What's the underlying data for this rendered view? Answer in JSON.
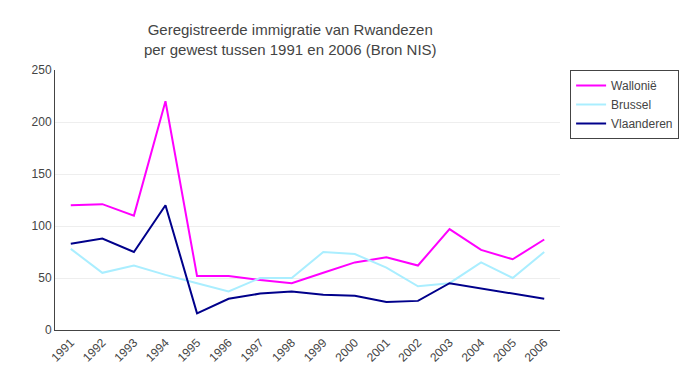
{
  "chart_data": {
    "type": "line",
    "title": "Geregistreerde immigratie van Rwandezen\nper gewest tussen 1991 en 2006 (Bron NIS)",
    "x": [
      1991,
      1992,
      1993,
      1994,
      1995,
      1996,
      1997,
      1998,
      1999,
      2000,
      2001,
      2002,
      2003,
      2004,
      2005,
      2006
    ],
    "series": [
      {
        "name": "Wallonië",
        "color": "#ff00ff",
        "values": [
          120,
          121,
          110,
          220,
          52,
          52,
          48,
          45,
          55,
          65,
          70,
          62,
          97,
          77,
          68,
          87
        ]
      },
      {
        "name": "Brussel",
        "color": "#aaeeff",
        "values": [
          78,
          55,
          62,
          53,
          45,
          37,
          50,
          50,
          75,
          73,
          60,
          42,
          45,
          65,
          50,
          75
        ]
      },
      {
        "name": "Vlaanderen",
        "color": "#00008b",
        "values": [
          83,
          88,
          75,
          120,
          16,
          30,
          35,
          37,
          34,
          33,
          27,
          28,
          45,
          40,
          35,
          30
        ]
      }
    ],
    "xlim": [
      1990.5,
      2006.5
    ],
    "xticks": [
      1991,
      1992,
      1993,
      1994,
      1995,
      1996,
      1997,
      1998,
      1999,
      2000,
      2001,
      2002,
      2003,
      2004,
      2005,
      2006
    ],
    "ylim": [
      0,
      250
    ],
    "yticks": [
      0,
      50,
      100,
      150,
      200,
      250
    ],
    "grid": true,
    "legend": "right"
  }
}
